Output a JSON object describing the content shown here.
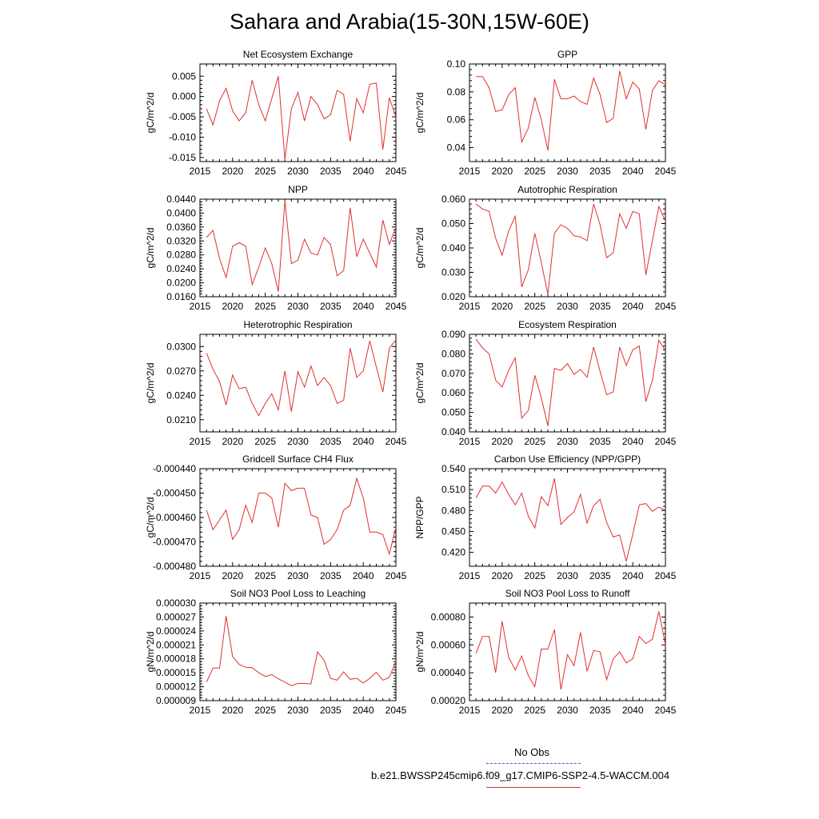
{
  "page": {
    "title": "Sahara and Arabia(15-30N,15W-60E)"
  },
  "legend": {
    "obs_label": "No Obs",
    "obs_color": "#5555cc",
    "model_label": "b.e21.BWSSP245cmip6.f09_g17.CMIP6-SSP2-4.5-WACCM.004",
    "model_color": "#e03030"
  },
  "chart_data": [
    {
      "type": "line",
      "title": "Net Ecosystem Exchange",
      "ylabel": "gC/m^2/d",
      "xlim": [
        2015,
        2045
      ],
      "ylim": [
        -0.016,
        0.008
      ],
      "xticks": [
        2015,
        2020,
        2025,
        2030,
        2035,
        2040,
        2045
      ],
      "yticks": [
        "0.005",
        "0.000",
        "-0.005",
        "-0.010",
        "-0.015"
      ],
      "x": [
        2016,
        2017,
        2018,
        2019,
        2020,
        2021,
        2022,
        2023,
        2024,
        2025,
        2026,
        2027,
        2028,
        2029,
        2030,
        2031,
        2032,
        2033,
        2034,
        2035,
        2036,
        2037,
        2038,
        2039,
        2040,
        2041,
        2042,
        2043,
        2044,
        2045
      ],
      "values": [
        -0.003,
        -0.007,
        -0.001,
        0.002,
        -0.0035,
        -0.006,
        -0.004,
        0.004,
        -0.002,
        -0.006,
        -0.0005,
        0.005,
        -0.0155,
        -0.003,
        0.001,
        -0.006,
        0.0,
        -0.002,
        -0.0055,
        -0.0045,
        0.0015,
        0.0005,
        -0.011,
        -0.0005,
        -0.004,
        0.003,
        0.0033,
        -0.013,
        -0.0003,
        -0.005
      ]
    },
    {
      "type": "line",
      "title": "GPP",
      "ylabel": "gC/m^2/d",
      "xlim": [
        2015,
        2045
      ],
      "ylim": [
        0.03,
        0.1
      ],
      "xticks": [
        2015,
        2020,
        2025,
        2030,
        2035,
        2040,
        2045
      ],
      "yticks": [
        "0.10",
        "0.08",
        "0.06",
        "0.04"
      ],
      "x": [
        2016,
        2017,
        2018,
        2019,
        2020,
        2021,
        2022,
        2023,
        2024,
        2025,
        2026,
        2027,
        2028,
        2029,
        2030,
        2031,
        2032,
        2033,
        2034,
        2035,
        2036,
        2037,
        2038,
        2039,
        2040,
        2041,
        2042,
        2043,
        2044,
        2045
      ],
      "values": [
        0.091,
        0.091,
        0.083,
        0.066,
        0.067,
        0.078,
        0.083,
        0.044,
        0.054,
        0.076,
        0.06,
        0.038,
        0.089,
        0.075,
        0.075,
        0.077,
        0.073,
        0.071,
        0.09,
        0.078,
        0.058,
        0.061,
        0.095,
        0.075,
        0.087,
        0.082,
        0.053,
        0.081,
        0.088,
        0.085
      ]
    },
    {
      "type": "line",
      "title": "NPP",
      "ylabel": "gC/m^2/d",
      "xlim": [
        2015,
        2045
      ],
      "ylim": [
        0.016,
        0.044
      ],
      "xticks": [
        2015,
        2020,
        2025,
        2030,
        2035,
        2040,
        2045
      ],
      "yticks": [
        "0.0440",
        "0.0400",
        "0.0360",
        "0.0320",
        "0.0280",
        "0.0240",
        "0.0200",
        "0.0160"
      ],
      "x": [
        2016,
        2017,
        2018,
        2019,
        2020,
        2021,
        2022,
        2023,
        2024,
        2025,
        2026,
        2027,
        2028,
        2029,
        2030,
        2031,
        2032,
        2033,
        2034,
        2035,
        2036,
        2037,
        2038,
        2039,
        2040,
        2041,
        2042,
        2043,
        2044,
        2045
      ],
      "values": [
        0.033,
        0.035,
        0.027,
        0.0215,
        0.0305,
        0.0315,
        0.0305,
        0.0195,
        0.0245,
        0.03,
        0.0255,
        0.0175,
        0.0435,
        0.0255,
        0.0265,
        0.0325,
        0.0285,
        0.028,
        0.033,
        0.031,
        0.022,
        0.0235,
        0.0415,
        0.0275,
        0.0325,
        0.0285,
        0.0245,
        0.038,
        0.031,
        0.036
      ]
    },
    {
      "type": "line",
      "title": "Autotrophic Respiration",
      "ylabel": "gC/m^2/d",
      "xlim": [
        2015,
        2045
      ],
      "ylim": [
        0.02,
        0.06
      ],
      "xticks": [
        2015,
        2020,
        2025,
        2030,
        2035,
        2040,
        2045
      ],
      "yticks": [
        "0.060",
        "0.050",
        "0.040",
        "0.030",
        "0.020"
      ],
      "x": [
        2016,
        2017,
        2018,
        2019,
        2020,
        2021,
        2022,
        2023,
        2024,
        2025,
        2026,
        2027,
        2028,
        2029,
        2030,
        2031,
        2032,
        2033,
        2034,
        2035,
        2036,
        2037,
        2038,
        2039,
        2040,
        2041,
        2042,
        2043,
        2044,
        2045
      ],
      "values": [
        0.058,
        0.056,
        0.055,
        0.044,
        0.037,
        0.047,
        0.053,
        0.024,
        0.031,
        0.046,
        0.034,
        0.021,
        0.046,
        0.0495,
        0.048,
        0.045,
        0.0445,
        0.043,
        0.058,
        0.0495,
        0.036,
        0.038,
        0.054,
        0.048,
        0.055,
        0.054,
        0.029,
        0.043,
        0.057,
        0.051
      ]
    },
    {
      "type": "line",
      "title": "Heterotrophic Respiration",
      "ylabel": "gC/m^2/d",
      "xlim": [
        2015,
        2045
      ],
      "ylim": [
        0.0195,
        0.0315
      ],
      "xticks": [
        2015,
        2020,
        2025,
        2030,
        2035,
        2040,
        2045
      ],
      "yticks": [
        "0.0300",
        "0.0270",
        "0.0240",
        "0.0210"
      ],
      "x": [
        2016,
        2017,
        2018,
        2019,
        2020,
        2021,
        2022,
        2023,
        2024,
        2025,
        2026,
        2027,
        2028,
        2029,
        2030,
        2031,
        2032,
        2033,
        2034,
        2035,
        2036,
        2037,
        2038,
        2039,
        2040,
        2041,
        2042,
        2043,
        2044,
        2045
      ],
      "values": [
        0.0292,
        0.0272,
        0.0257,
        0.0228,
        0.0265,
        0.0248,
        0.025,
        0.023,
        0.0215,
        0.023,
        0.0242,
        0.0222,
        0.027,
        0.022,
        0.0269,
        0.025,
        0.0276,
        0.0252,
        0.0262,
        0.0252,
        0.023,
        0.0234,
        0.0298,
        0.0262,
        0.027,
        0.0307,
        0.0275,
        0.0244,
        0.0298,
        0.0308
      ]
    },
    {
      "type": "line",
      "title": "Ecosystem Respiration",
      "ylabel": "gC/m^2/d",
      "xlim": [
        2015,
        2045
      ],
      "ylim": [
        0.04,
        0.09
      ],
      "xticks": [
        2015,
        2020,
        2025,
        2030,
        2035,
        2040,
        2045
      ],
      "yticks": [
        "0.090",
        "0.080",
        "0.070",
        "0.060",
        "0.050",
        "0.040"
      ],
      "x": [
        2016,
        2017,
        2018,
        2019,
        2020,
        2021,
        2022,
        2023,
        2024,
        2025,
        2026,
        2027,
        2028,
        2029,
        2030,
        2031,
        2032,
        2033,
        2034,
        2035,
        2036,
        2037,
        2038,
        2039,
        2040,
        2041,
        2042,
        2043,
        2044,
        2045
      ],
      "values": [
        0.0875,
        0.083,
        0.08,
        0.0665,
        0.063,
        0.0715,
        0.078,
        0.047,
        0.051,
        0.069,
        0.0575,
        0.043,
        0.0725,
        0.0715,
        0.075,
        0.0695,
        0.072,
        0.068,
        0.0835,
        0.071,
        0.059,
        0.0605,
        0.0835,
        0.074,
        0.082,
        0.084,
        0.0555,
        0.0665,
        0.087,
        0.0815
      ]
    },
    {
      "type": "line",
      "title": "Gridcell Surface CH4 Flux",
      "ylabel": "gC/m^2/d",
      "xlim": [
        2015,
        2045
      ],
      "ylim": [
        -0.00048,
        -0.00044
      ],
      "xticks": [
        2015,
        2020,
        2025,
        2030,
        2035,
        2040,
        2045
      ],
      "yticks": [
        "-0.000440",
        "-0.000450",
        "-0.000460",
        "-0.000470",
        "-0.000480"
      ],
      "x": [
        2016,
        2017,
        2018,
        2019,
        2020,
        2021,
        2022,
        2023,
        2024,
        2025,
        2026,
        2027,
        2028,
        2029,
        2030,
        2031,
        2032,
        2033,
        2034,
        2035,
        2036,
        2037,
        2038,
        2039,
        2040,
        2041,
        2042,
        2043,
        2044,
        2045
      ],
      "values": [
        -0.000457,
        -0.000465,
        -0.000461,
        -0.000457,
        -0.000469,
        -0.000465,
        -0.000455,
        -0.000462,
        -0.00045,
        -0.00045,
        -0.000452,
        -0.000464,
        -0.000446,
        -0.000449,
        -0.000448,
        -0.000448,
        -0.000459,
        -0.00046,
        -0.000471,
        -0.000469,
        -0.000465,
        -0.000457,
        -0.000455,
        -0.000444,
        -0.000452,
        -0.000466,
        -0.000466,
        -0.000467,
        -0.000475,
        -0.000464
      ]
    },
    {
      "type": "line",
      "title": "Carbon Use Efficiency (NPP/GPP)",
      "ylabel": "NPP/GPP",
      "xlim": [
        2015,
        2045
      ],
      "ylim": [
        0.4,
        0.54
      ],
      "xticks": [
        2015,
        2020,
        2025,
        2030,
        2035,
        2040,
        2045
      ],
      "yticks": [
        "0.540",
        "0.510",
        "0.480",
        "0.450",
        "0.420"
      ],
      "x": [
        2016,
        2017,
        2018,
        2019,
        2020,
        2021,
        2022,
        2023,
        2024,
        2025,
        2026,
        2027,
        2028,
        2029,
        2030,
        2031,
        2032,
        2033,
        2034,
        2035,
        2036,
        2037,
        2038,
        2039,
        2040,
        2041,
        2042,
        2043,
        2044,
        2045
      ],
      "values": [
        0.498,
        0.515,
        0.515,
        0.505,
        0.521,
        0.503,
        0.488,
        0.505,
        0.472,
        0.455,
        0.5,
        0.487,
        0.526,
        0.46,
        0.47,
        0.478,
        0.503,
        0.462,
        0.487,
        0.496,
        0.463,
        0.442,
        0.445,
        0.407,
        0.446,
        0.488,
        0.49,
        0.479,
        0.485,
        0.48
      ]
    },
    {
      "type": "line",
      "title": "Soil NO3 Pool Loss to Leaching",
      "ylabel": "gN/m^2/d",
      "xlim": [
        2015,
        2045
      ],
      "ylim": [
        9e-06,
        3e-05
      ],
      "xticks": [
        2015,
        2020,
        2025,
        2030,
        2035,
        2040,
        2045
      ],
      "yticks": [
        "0.000030",
        "0.000027",
        "0.000024",
        "0.000021",
        "0.000018",
        "0.000015",
        "0.000012",
        "0.000009"
      ],
      "x": [
        2016,
        2017,
        2018,
        2019,
        2020,
        2021,
        2022,
        2023,
        2024,
        2025,
        2026,
        2027,
        2028,
        2029,
        2030,
        2031,
        2032,
        2033,
        2034,
        2035,
        2036,
        2037,
        2038,
        2039,
        2040,
        2041,
        2042,
        2043,
        2044,
        2045
      ],
      "values": [
        1.3e-05,
        1.6e-05,
        1.6e-05,
        2.72e-05,
        1.85e-05,
        1.68e-05,
        1.62e-05,
        1.61e-05,
        1.5e-05,
        1.42e-05,
        1.46e-05,
        1.37e-05,
        1.3e-05,
        1.22e-05,
        1.27e-05,
        1.27e-05,
        1.26e-05,
        1.95e-05,
        1.77e-05,
        1.38e-05,
        1.34e-05,
        1.52e-05,
        1.36e-05,
        1.38e-05,
        1.28e-05,
        1.38e-05,
        1.51e-05,
        1.34e-05,
        1.4e-05,
        1.75e-05
      ]
    },
    {
      "type": "line",
      "title": "Soil NO3 Pool Loss to Runoff",
      "ylabel": "gN/m^2/d",
      "xlim": [
        2015,
        2045
      ],
      "ylim": [
        0.0002,
        0.0009
      ],
      "xticks": [
        2015,
        2020,
        2025,
        2030,
        2035,
        2040,
        2045
      ],
      "yticks": [
        "0.00080",
        "0.00060",
        "0.00040",
        "0.00020"
      ],
      "x": [
        2016,
        2017,
        2018,
        2019,
        2020,
        2021,
        2022,
        2023,
        2024,
        2025,
        2026,
        2027,
        2028,
        2029,
        2030,
        2031,
        2032,
        2033,
        2034,
        2035,
        2036,
        2037,
        2038,
        2039,
        2040,
        2041,
        2042,
        2043,
        2044,
        2045
      ],
      "values": [
        0.00054,
        0.00066,
        0.00066,
        0.0004,
        0.00077,
        0.00051,
        0.00042,
        0.00052,
        0.00038,
        0.0003,
        0.00057,
        0.00057,
        0.00071,
        0.00028,
        0.00053,
        0.00045,
        0.00069,
        0.00041,
        0.00056,
        0.00055,
        0.00035,
        0.0005,
        0.00055,
        0.00047,
        0.0005,
        0.00066,
        0.00061,
        0.00064,
        0.00084,
        0.0006
      ]
    }
  ]
}
